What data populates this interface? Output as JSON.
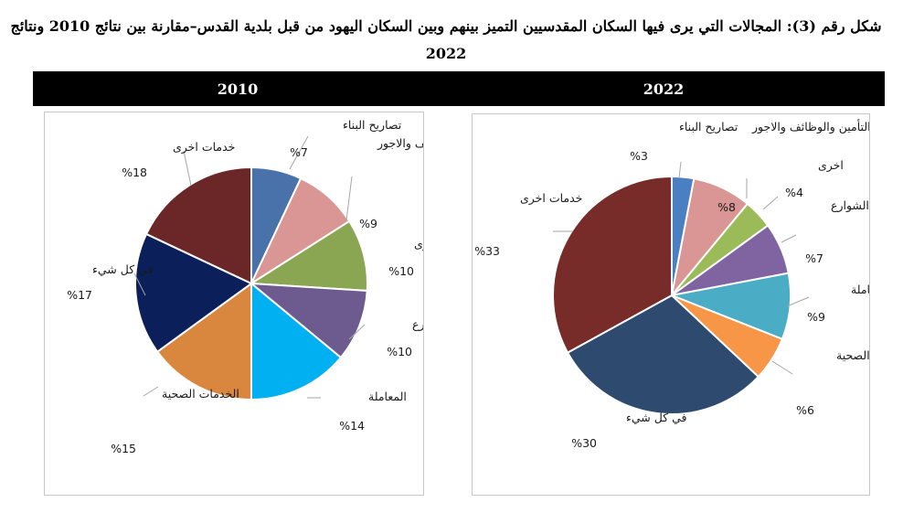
{
  "title": "شكل رقم (3): المجالات التي يرى فيها السكان المقدسيين التميز بينهم وبين السكان اليهود من قبل بلدية القدس–مقارنة بين نتائج 2010 ونتائج 2022",
  "chart_data": [
    {
      "type": "pie",
      "title": "2010",
      "categories": [
        "تصاريح البناء",
        "التأمين والوظائف والاجور",
        "اخرى",
        "جودة الشوارع",
        "المعاملة",
        "الخدمات الصحية",
        "في كل شيء",
        "خدمات اخرى"
      ],
      "values": [
        7,
        9,
        10,
        10,
        14,
        15,
        17,
        18
      ],
      "value_labels": [
        "%7",
        "%9",
        "%10",
        "%10",
        "%14",
        "%15",
        "%17",
        "%18"
      ],
      "colors": [
        "#4a72aa",
        "#d99694",
        "#8aa652",
        "#6d5a8f",
        "#00b0f0",
        "#d9863f",
        "#0b1f5a",
        "#6b2628"
      ]
    },
    {
      "type": "pie",
      "title": "2022",
      "categories": [
        "تصاريح البناء",
        "التأمين والوظائف والاجور",
        "اخرى",
        "جودة الشوارع",
        "المعاملة",
        "الخدمات الصحية",
        "في كل شيء",
        "خدمات اخرى"
      ],
      "values": [
        3,
        8,
        4,
        7,
        9,
        6,
        30,
        33
      ],
      "value_labels": [
        "%3",
        "%8",
        "%4",
        "%7",
        "%9",
        "%6",
        "%30",
        "%33"
      ],
      "colors": [
        "#4a7fc1",
        "#d99694",
        "#9bbb59",
        "#8064a2",
        "#4bacc6",
        "#f79646",
        "#2e4a6e",
        "#772c2a"
      ]
    }
  ]
}
